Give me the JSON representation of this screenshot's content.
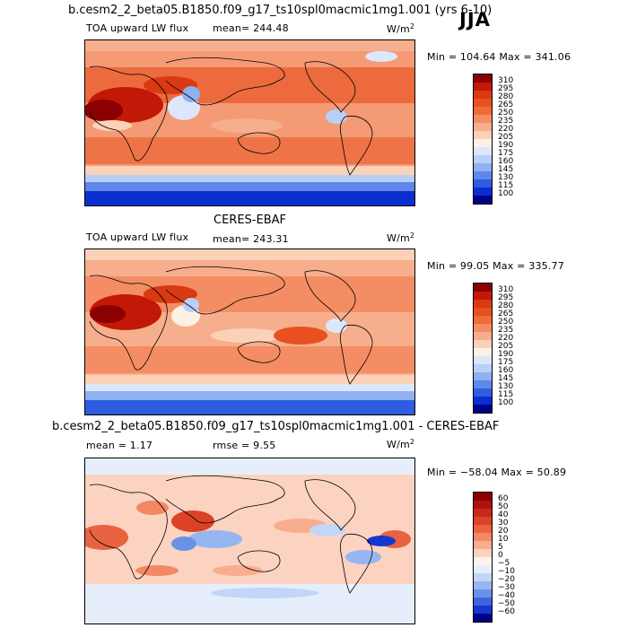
{
  "header": {
    "model_title": "b.cesm2_2_beta05.B1850.f09_g17_ts10spl0macmic1mg1.001 (yrs 6-10)",
    "season": "JJA"
  },
  "panels": [
    {
      "id": "model",
      "variable": "TOA upward LW flux",
      "mean_label": "mean= 244.48",
      "units_main": "W/m",
      "units_sup": "2",
      "minmax": "Min = 104.64 Max = 341.06",
      "colorbar": {
        "levels": [
          "310",
          "295",
          "280",
          "265",
          "250",
          "235",
          "220",
          "205",
          "190",
          "175",
          "160",
          "145",
          "130",
          "115",
          "100"
        ],
        "colors": [
          "#8b0000",
          "#c21807",
          "#d93a12",
          "#e8501f",
          "#ef6b3c",
          "#f48d63",
          "#f7ae8c",
          "#fbd2b8",
          "#fdf0e4",
          "#dbe8fb",
          "#b8d0f8",
          "#8fb1f2",
          "#5f88ea",
          "#2f5de0",
          "#0a2fd0",
          "#00008b"
        ]
      }
    },
    {
      "id": "obs",
      "title": "CERES-EBAF",
      "variable": "TOA upward LW flux",
      "mean_label": "mean= 243.31",
      "units_main": "W/m",
      "units_sup": "2",
      "minmax": "Min =  99.05 Max = 335.77",
      "colorbar": {
        "levels": [
          "310",
          "295",
          "280",
          "265",
          "250",
          "235",
          "220",
          "205",
          "190",
          "175",
          "160",
          "145",
          "130",
          "115",
          "100"
        ],
        "colors": [
          "#8b0000",
          "#c21807",
          "#d93a12",
          "#e8501f",
          "#ef6b3c",
          "#f48d63",
          "#f7ae8c",
          "#fbd2b8",
          "#fdf0e4",
          "#dbe8fb",
          "#b8d0f8",
          "#8fb1f2",
          "#5f88ea",
          "#2f5de0",
          "#0a2fd0",
          "#00008b"
        ]
      }
    },
    {
      "id": "diff",
      "title": "b.cesm2_2_beta05.B1850.f09_g17_ts10spl0macmic1mg1.001 - CERES-EBAF",
      "mean_label": "mean =    1.17",
      "rmse_label": "rmse =    9.55",
      "units_main": "W/m",
      "units_sup": "2",
      "minmax": "Min = −58.04 Max =  50.89",
      "colorbar": {
        "levels": [
          "60",
          "50",
          "40",
          "30",
          "20",
          "10",
          "5",
          "0",
          "−5",
          "−10",
          "−20",
          "−30",
          "−40",
          "−50",
          "−60"
        ],
        "colors": [
          "#8b0000",
          "#b01010",
          "#c8281a",
          "#dc4226",
          "#ea6340",
          "#f38863",
          "#f8ad8f",
          "#fcd3c0",
          "#fdf3ea",
          "#e6eefc",
          "#c2d6f8",
          "#97b6f1",
          "#6a91e8",
          "#3c66de",
          "#1438cf",
          "#00008b"
        ]
      }
    }
  ]
}
